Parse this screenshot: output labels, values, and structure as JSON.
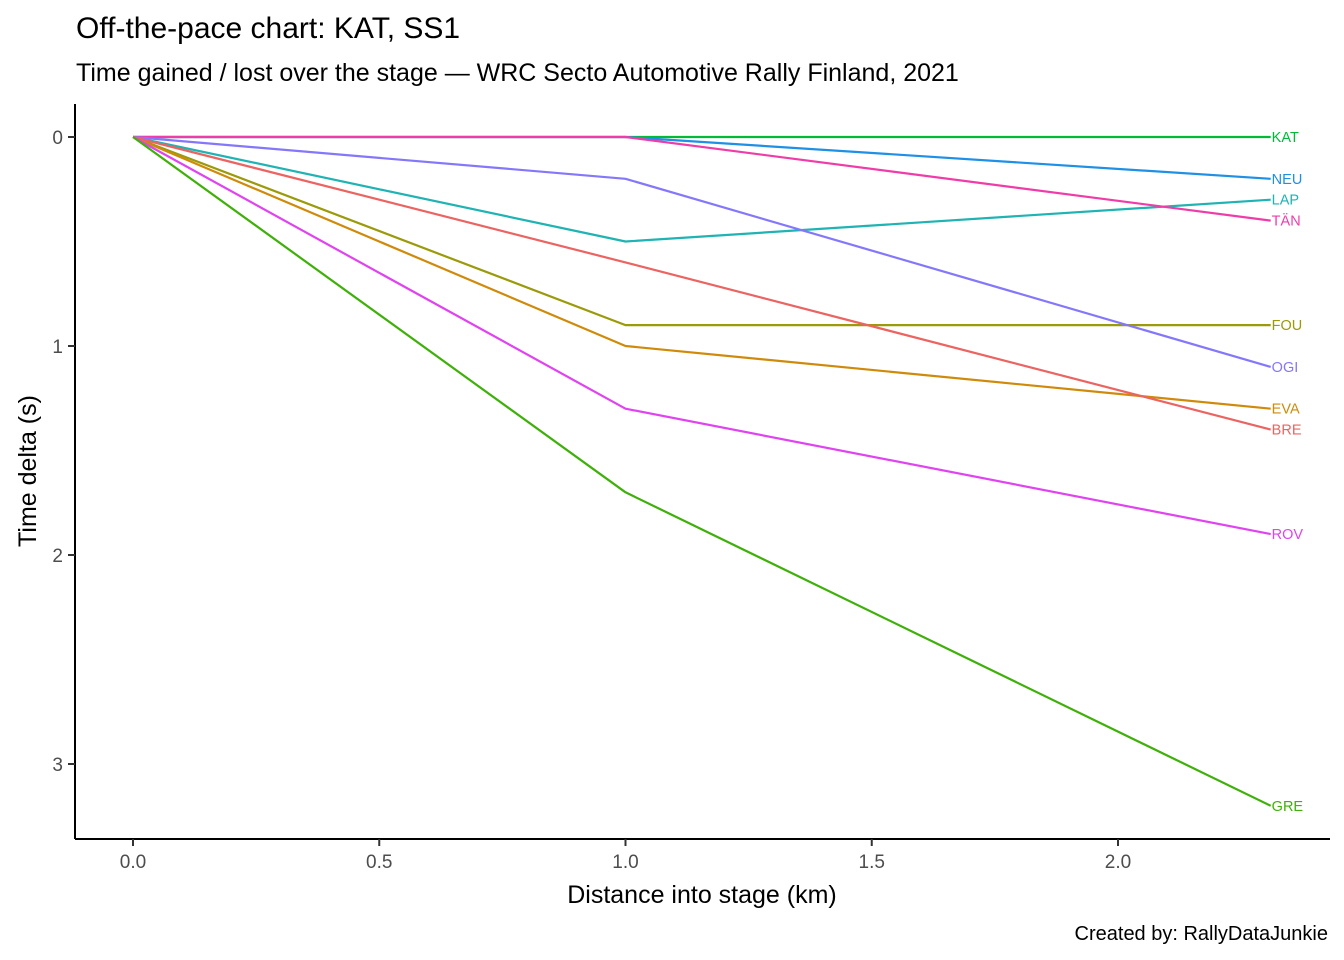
{
  "chart_data": {
    "type": "line",
    "title": "Off-the-pace chart: KAT, SS1",
    "subtitle": "Time gained / lost over the stage — WRC Secto Automotive Rally Finland, 2021",
    "caption": "Created by: RallyDataJunkie",
    "xlabel": "Distance into stage (km)",
    "ylabel": "Time delta (s)",
    "y_reversed": true,
    "grid": false,
    "legend": "none (direct labels at line ends)",
    "x_ticks": [
      "0.0",
      "0.5",
      "1.0",
      "1.5",
      "2.0"
    ],
    "y_ticks": [
      "0",
      "1",
      "2",
      "3"
    ],
    "series": [
      {
        "name": "KAT",
        "color": "#00BA38",
        "x": [
          0,
          1.0,
          2.31
        ],
        "y": [
          0,
          0,
          0
        ]
      },
      {
        "name": "NEU",
        "color": "#1E90E6",
        "x": [
          0,
          1.0,
          2.31
        ],
        "y": [
          0,
          0,
          0.2
        ]
      },
      {
        "name": "LAP",
        "color": "#1FB3B3",
        "x": [
          0,
          1.0,
          2.31
        ],
        "y": [
          0,
          0.5,
          0.3
        ]
      },
      {
        "name": "TÄN",
        "color": "#F03CA8",
        "x": [
          0,
          1.0,
          2.31
        ],
        "y": [
          0,
          0,
          0.4
        ]
      },
      {
        "name": "FOU",
        "color": "#9A9A0A",
        "x": [
          0,
          1.0,
          2.31
        ],
        "y": [
          0,
          0.9,
          0.9
        ]
      },
      {
        "name": "OGI",
        "color": "#8477FB",
        "x": [
          0,
          1.0,
          2.31
        ],
        "y": [
          0,
          0.2,
          1.1
        ]
      },
      {
        "name": "EVA",
        "color": "#D08A0A",
        "x": [
          0,
          1.0,
          2.31
        ],
        "y": [
          0,
          1.0,
          1.3
        ]
      },
      {
        "name": "BRE",
        "color": "#EB6462",
        "x": [
          0,
          1.0,
          2.31
        ],
        "y": [
          0,
          0.6,
          1.4
        ]
      },
      {
        "name": "ROV",
        "color": "#E043F0",
        "x": [
          0,
          1.0,
          2.31
        ],
        "y": [
          0,
          1.3,
          1.9
        ]
      },
      {
        "name": "GRE",
        "color": "#3FB00A",
        "x": [
          0,
          1.0,
          2.31
        ],
        "y": [
          0,
          1.7,
          3.2
        ]
      }
    ]
  }
}
